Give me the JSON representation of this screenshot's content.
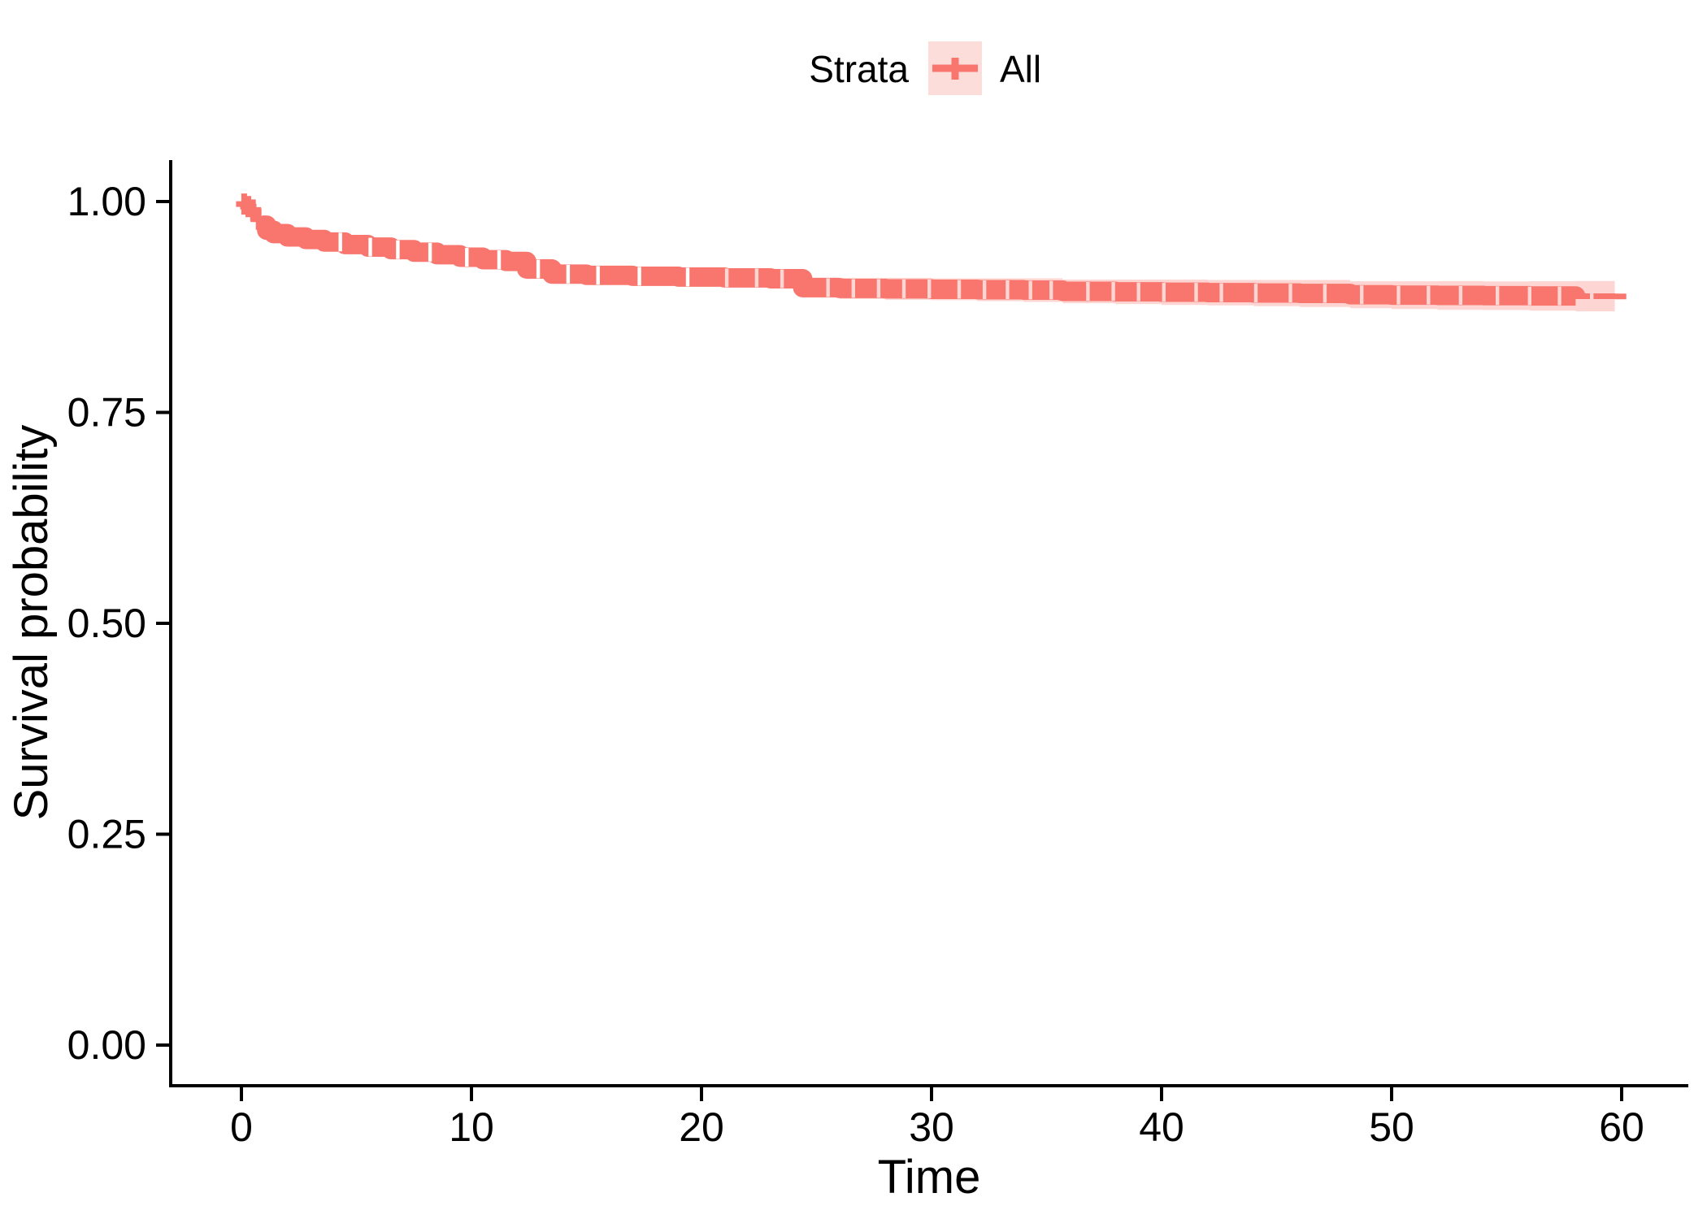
{
  "chart_data": {
    "type": "line",
    "subtype": "kaplan-meier-survival",
    "title": "",
    "xlabel": "Time",
    "ylabel": "Survival probability",
    "x_ticks": [
      "0",
      "10",
      "20",
      "30",
      "40",
      "50",
      "60"
    ],
    "x_tick_values": [
      0,
      10,
      20,
      30,
      40,
      50,
      60
    ],
    "y_ticks": [
      "0.00",
      "0.25",
      "0.50",
      "0.75",
      "1.00"
    ],
    "y_tick_values": [
      0.0,
      0.25,
      0.5,
      0.75,
      1.0
    ],
    "xlim": [
      0,
      60.5
    ],
    "ylim": [
      0.0,
      1.0
    ],
    "grid": false,
    "legend": {
      "position": "top",
      "title": "Strata",
      "entries": [
        {
          "label": "All",
          "color": "#F8766D"
        }
      ]
    },
    "colors": {
      "curve": "#F8766D",
      "ci_ribbon": "rgba(248,118,109,0.3)",
      "ci_ribbon_flat": "#FCD6D3",
      "legend_key_bg": "rgba(248,118,109,0.25)",
      "axis": "#000000",
      "text": "#000000"
    },
    "series": [
      {
        "name": "All",
        "color": "#F8766D",
        "steps_t_S_ci": [
          [
            0,
            1.0,
            0.001
          ],
          [
            0.12,
            0.997,
            0.002
          ],
          [
            0.25,
            0.994,
            0.003
          ],
          [
            0.4,
            0.99,
            0.0035
          ],
          [
            0.55,
            0.985,
            0.004
          ],
          [
            0.7,
            0.979,
            0.0045
          ],
          [
            0.9,
            0.972,
            0.005
          ],
          [
            1.1,
            0.966,
            0.005
          ],
          [
            1.4,
            0.962,
            0.0055
          ],
          [
            2,
            0.958,
            0.006
          ],
          [
            2.8,
            0.955,
            0.006
          ],
          [
            3.6,
            0.952,
            0.0065
          ],
          [
            4.5,
            0.949,
            0.007
          ],
          [
            5.5,
            0.946,
            0.007
          ],
          [
            6.5,
            0.943,
            0.0075
          ],
          [
            7.5,
            0.94,
            0.008
          ],
          [
            8.5,
            0.937,
            0.008
          ],
          [
            9.5,
            0.934,
            0.0085
          ],
          [
            10.5,
            0.931,
            0.009
          ],
          [
            11.5,
            0.929,
            0.009
          ],
          [
            12.4,
            0.92,
            0.0095
          ],
          [
            13.5,
            0.914,
            0.01
          ],
          [
            15,
            0.9125,
            0.01
          ],
          [
            17,
            0.9115,
            0.0105
          ],
          [
            19,
            0.9105,
            0.011
          ],
          [
            21,
            0.9095,
            0.011
          ],
          [
            23,
            0.9085,
            0.0115
          ],
          [
            24.4,
            0.898,
            0.012
          ],
          [
            26,
            0.897,
            0.0125
          ],
          [
            28,
            0.8965,
            0.013
          ],
          [
            30,
            0.896,
            0.013
          ],
          [
            32,
            0.8955,
            0.0135
          ],
          [
            34,
            0.895,
            0.014
          ],
          [
            35.7,
            0.8935,
            0.014
          ],
          [
            38,
            0.893,
            0.0145
          ],
          [
            40,
            0.8925,
            0.015
          ],
          [
            42,
            0.892,
            0.015
          ],
          [
            44,
            0.8915,
            0.0155
          ],
          [
            46,
            0.891,
            0.016
          ],
          [
            48.2,
            0.8895,
            0.016
          ],
          [
            50,
            0.889,
            0.0165
          ],
          [
            52,
            0.8887,
            0.017
          ],
          [
            54,
            0.8884,
            0.017
          ],
          [
            56,
            0.8881,
            0.0175
          ],
          [
            58,
            0.8878,
            0.018
          ],
          [
            59.7,
            0.8875,
            0.018
          ],
          [
            60.2,
            0.8875,
            0.018
          ]
        ],
        "censor_band": {
          "from_t": 0.9,
          "to_t": 59.3,
          "half_height_s": 0.0115
        },
        "censor_gaps_t": [
          4.3,
          5.6,
          6.8,
          8.2,
          9.8,
          11.2,
          12.9,
          14.2,
          15.5,
          17.3,
          19.4,
          21.1,
          22.4,
          23.5,
          25.5,
          26.6,
          27.7,
          28.8,
          29.9,
          31.2,
          32.3,
          33.3,
          34.3,
          35.2,
          36.8,
          37.9,
          39.0,
          40.1,
          41.5,
          42.6,
          44.1,
          45.6,
          47.1,
          48.7,
          50.3,
          51.6,
          53.0,
          54.6,
          56.0,
          57.3,
          58.7
        ],
        "start_censor_marks_t": [
          0.12,
          0.3,
          0.5,
          0.75
        ]
      }
    ]
  }
}
